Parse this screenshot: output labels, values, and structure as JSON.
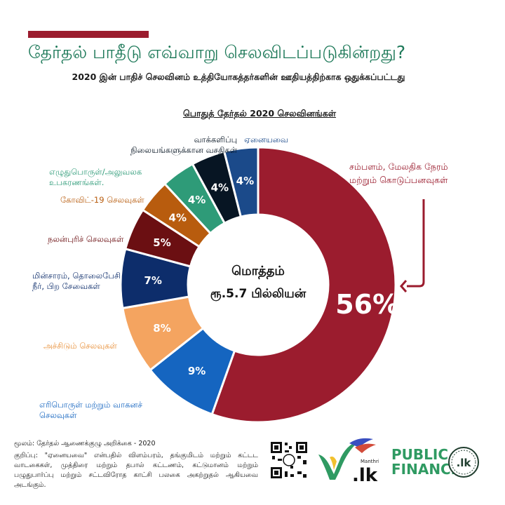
{
  "header": {
    "title": "தேர்தல் பாதீடு எவ்வாறு செலவிடப்படுகின்றது?",
    "subtitle": "2020 இன் பாதிச் செலவினம் உத்தியோகத்தர்களின் ஊதியத்திற்காக ஒதுக்கப்பட்டது"
  },
  "colors": {
    "accent_red": "#9b1c2e",
    "title_green": "#1f7a5a",
    "brand_green": "#2f9a62"
  },
  "chart_data": {
    "type": "pie",
    "style": "donut",
    "title": "பொதுத் தேர்தல் 2020 செலவினங்கள்",
    "center_label": [
      "மொத்தம்",
      "ரூ.5.7 பில்லியன்"
    ],
    "categories": [
      "சம்பளம், மேலதிக நேரம் மற்றும் கொடுப்பனவுகள்",
      "எரிபொருள் மற்றும் வாகனச் செலவுகள்",
      "அச்சிடும் செலவுகள்",
      "மின்சாரம், தொலைபேசி நீர், பிற சேவைகள்",
      "நலன்புரிச் செலவுகள்",
      "கோவிட்-19 செலவுகள்",
      "எழுதுபொருள்/அலுவலக உபகரணங்கள்.",
      "வாக்களிப்பு நிலையங்களுக்கான வசதிகள்",
      "ஏனையவை"
    ],
    "values": [
      56,
      9,
      8,
      7,
      5,
      4,
      4,
      4,
      4
    ],
    "value_labels": [
      "56%",
      "9%",
      "8%",
      "7%",
      "5%",
      "4%",
      "4%",
      "4%",
      "4%"
    ],
    "colors": [
      "#9b1c2e",
      "#1565c0",
      "#f4a460",
      "#0d2d6b",
      "#6b0f12",
      "#b85c0e",
      "#2e9b78",
      "#071523",
      "#1b4a8a"
    ],
    "label_colors": [
      "#9b1c2e",
      "#1565c0",
      "#e8903a",
      "#0d2d6b",
      "#6b0f12",
      "#b85c0e",
      "#2e9b78",
      "#071523",
      "#1b4a8a"
    ]
  },
  "labels": {
    "salaries": [
      "சம்பளம், மேலதிக நேரம்",
      "மற்றும் கொடுப்பனவுகள்"
    ],
    "fuel": [
      "எரிபொருள் மற்றும் வாகனச்",
      "செலவுகள்"
    ],
    "printing": [
      "அச்சிடும் செலவுகள்"
    ],
    "utilities": [
      "மின்சாரம், தொலைபேசி",
      "நீர், பிற சேவைகள்"
    ],
    "welfare": [
      "நலன்புரிச் செலவுகள்"
    ],
    "covid": [
      "கோவிட்-19 செலவுகள்"
    ],
    "stationery": [
      "எழுதுபொருள்/அலுவலக",
      "உபகரணங்கள்."
    ],
    "polling": [
      "வாக்களிப்பு",
      "நிலையங்களுக்கான வசதிகள்"
    ],
    "others": [
      "ஏனையவை"
    ]
  },
  "footer": {
    "source": "மூலம்: தேர்தல் ஆணைக்குழு அறிக்கை - 2020",
    "note": "குறிப்பு: \"ஏனையவை\" என்பதில் விளம்பரம், தங்குமிடம் மற்றும் கட்டட வாடகைகள், முத்திரை மற்றும் தபால் கட்டணம், கட்டுமானம் மற்றும் பழுதுபார்ப்பு மற்றும் சட்டவிரோத காட்சி பலகை அகற்றுதல் ஆகியவை அடங்கும்.",
    "manthri_logo": "Manthri .lk",
    "brand_line1": "PUBLIC",
    "brand_line2": "FINANCE",
    "brand_badge": ".lk"
  }
}
